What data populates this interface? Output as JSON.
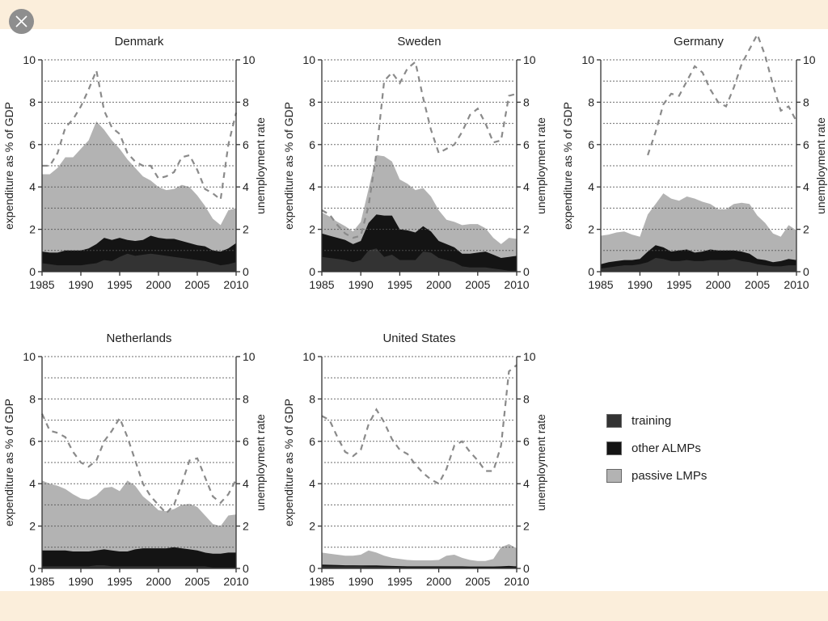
{
  "viewer": {
    "close_icon": "close-x-icon"
  },
  "legend": [
    {
      "key": "training",
      "label": "training",
      "color": "#333333"
    },
    {
      "key": "other",
      "label": "other ALMPs",
      "color": "#141414"
    },
    {
      "key": "passive",
      "label": "passive LMPs",
      "color": "#b3b3b3"
    }
  ],
  "colors": {
    "training": "#333333",
    "other": "#141414",
    "passive": "#b3b3b3",
    "unemployment_line": "#8a8a8a",
    "gridline": "#555555",
    "axis": "#333333",
    "page_background": "#fbeedb"
  },
  "chart_data": [
    {
      "type": "area",
      "title": "Denmark",
      "ylabel": "expenditure as % of GDP",
      "y2label": "unemployment rate",
      "xlim": [
        1985,
        2010
      ],
      "ylim": [
        0,
        10
      ],
      "y2lim": [
        0,
        10
      ],
      "xticks": [
        "1985",
        "1990",
        "1995",
        "2000",
        "2005",
        "2010"
      ],
      "yticks": [
        "0",
        "2",
        "4",
        "6",
        "8",
        "10"
      ],
      "grid": true,
      "x": [
        1985,
        1986,
        1987,
        1988,
        1989,
        1990,
        1991,
        1992,
        1993,
        1994,
        1995,
        1996,
        1997,
        1998,
        1999,
        2000,
        2001,
        2002,
        2003,
        2004,
        2005,
        2006,
        2007,
        2008,
        2009,
        2010
      ],
      "series": [
        {
          "name": "training",
          "stack_top": [
            0.4,
            0.35,
            0.3,
            0.3,
            0.3,
            0.3,
            0.35,
            0.4,
            0.55,
            0.5,
            0.7,
            0.85,
            0.75,
            0.8,
            0.85,
            0.8,
            0.75,
            0.7,
            0.65,
            0.6,
            0.55,
            0.5,
            0.4,
            0.3,
            0.35,
            0.45
          ]
        },
        {
          "name": "other ALMPs",
          "stack_top": [
            0.95,
            0.9,
            0.9,
            1.0,
            1.0,
            1.0,
            1.1,
            1.3,
            1.6,
            1.5,
            1.6,
            1.5,
            1.45,
            1.5,
            1.7,
            1.6,
            1.55,
            1.55,
            1.45,
            1.35,
            1.25,
            1.2,
            1.0,
            0.95,
            1.1,
            1.35
          ]
        },
        {
          "name": "passive LMPs",
          "stack_top": [
            4.6,
            4.6,
            4.9,
            5.4,
            5.4,
            5.8,
            6.2,
            7.1,
            6.7,
            6.2,
            5.8,
            5.3,
            4.9,
            4.5,
            4.3,
            4.0,
            3.85,
            3.9,
            4.1,
            4.0,
            3.6,
            3.1,
            2.5,
            2.2,
            2.9,
            3.0
          ]
        },
        {
          "name": "unemployment rate",
          "axis": "right",
          "style": "dashed",
          "values": [
            5.0,
            5.0,
            5.6,
            6.8,
            7.2,
            7.8,
            8.6,
            9.5,
            7.6,
            6.8,
            6.5,
            5.6,
            5.2,
            5.0,
            5.0,
            4.4,
            4.5,
            4.7,
            5.4,
            5.5,
            4.8,
            3.9,
            3.7,
            3.4,
            6.0,
            7.5
          ]
        }
      ]
    },
    {
      "type": "area",
      "title": "Sweden",
      "ylabel": "expenditure as % of GDP",
      "y2label": "unemployment rate",
      "xlim": [
        1985,
        2010
      ],
      "ylim": [
        0,
        10
      ],
      "y2lim": [
        0,
        10
      ],
      "xticks": [
        "1985",
        "1990",
        "1995",
        "2000",
        "2005",
        "2010"
      ],
      "yticks": [
        "0",
        "2",
        "4",
        "6",
        "8",
        "10"
      ],
      "grid": true,
      "x": [
        1985,
        1986,
        1987,
        1988,
        1989,
        1990,
        1991,
        1992,
        1993,
        1994,
        1995,
        1996,
        1997,
        1998,
        1999,
        2000,
        2001,
        2002,
        2003,
        2004,
        2005,
        2006,
        2007,
        2008,
        2009,
        2010
      ],
      "series": [
        {
          "name": "training",
          "stack_top": [
            0.7,
            0.65,
            0.6,
            0.55,
            0.45,
            0.55,
            1.0,
            1.1,
            0.7,
            0.8,
            0.55,
            0.55,
            0.55,
            0.95,
            0.9,
            0.65,
            0.55,
            0.45,
            0.25,
            0.2,
            0.2,
            0.2,
            0.15,
            0.1,
            0.05,
            0.05
          ]
        },
        {
          "name": "other ALMPs",
          "stack_top": [
            1.8,
            1.7,
            1.6,
            1.5,
            1.3,
            1.45,
            2.3,
            2.7,
            2.65,
            2.65,
            2.0,
            1.95,
            1.85,
            2.15,
            1.9,
            1.45,
            1.3,
            1.15,
            0.85,
            0.85,
            0.9,
            0.95,
            0.8,
            0.65,
            0.7,
            0.75
          ]
        },
        {
          "name": "passive LMPs",
          "stack_top": [
            2.8,
            2.6,
            2.35,
            2.15,
            1.9,
            2.35,
            3.9,
            5.5,
            5.45,
            5.2,
            4.35,
            4.15,
            3.85,
            3.95,
            3.55,
            2.9,
            2.45,
            2.35,
            2.2,
            2.25,
            2.25,
            2.05,
            1.6,
            1.3,
            1.6,
            1.55
          ]
        },
        {
          "name": "unemployment rate",
          "axis": "right",
          "style": "dashed",
          "values": [
            2.9,
            2.7,
            2.2,
            1.8,
            1.6,
            1.7,
            3.1,
            5.6,
            9.0,
            9.4,
            8.9,
            9.6,
            9.9,
            8.2,
            6.7,
            5.6,
            5.8,
            6.0,
            6.6,
            7.4,
            7.7,
            7.0,
            6.1,
            6.2,
            8.3,
            8.4
          ]
        }
      ]
    },
    {
      "type": "area",
      "title": "Germany",
      "ylabel": "expenditure as % of GDP",
      "y2label": "unemployment rate",
      "xlim": [
        1985,
        2010
      ],
      "ylim": [
        0,
        10
      ],
      "y2lim": [
        0,
        10
      ],
      "xticks": [
        "1985",
        "1990",
        "1995",
        "2000",
        "2005",
        "2010"
      ],
      "yticks": [
        "0",
        "2",
        "4",
        "6",
        "8",
        "10"
      ],
      "grid": true,
      "x": [
        1985,
        1986,
        1987,
        1988,
        1989,
        1990,
        1991,
        1992,
        1993,
        1994,
        1995,
        1996,
        1997,
        1998,
        1999,
        2000,
        2001,
        2002,
        2003,
        2004,
        2005,
        2006,
        2007,
        2008,
        2009,
        2010
      ],
      "series": [
        {
          "name": "training",
          "stack_top": [
            0.15,
            0.2,
            0.25,
            0.3,
            0.3,
            0.35,
            0.45,
            0.65,
            0.6,
            0.5,
            0.5,
            0.55,
            0.5,
            0.5,
            0.55,
            0.55,
            0.55,
            0.6,
            0.5,
            0.45,
            0.35,
            0.3,
            0.25,
            0.25,
            0.3,
            0.3
          ]
        },
        {
          "name": "other ALMPs",
          "stack_top": [
            0.35,
            0.45,
            0.5,
            0.55,
            0.55,
            0.6,
            0.95,
            1.25,
            1.15,
            0.95,
            1.0,
            1.05,
            0.9,
            0.95,
            1.05,
            1.0,
            1.0,
            1.0,
            0.95,
            0.85,
            0.6,
            0.55,
            0.45,
            0.5,
            0.6,
            0.55
          ]
        },
        {
          "name": "passive LMPs",
          "stack_top": [
            1.7,
            1.75,
            1.85,
            1.9,
            1.75,
            1.65,
            2.7,
            3.2,
            3.7,
            3.45,
            3.35,
            3.55,
            3.45,
            3.3,
            3.2,
            2.95,
            2.95,
            3.2,
            3.25,
            3.2,
            2.65,
            2.3,
            1.8,
            1.65,
            2.2,
            1.95
          ]
        },
        {
          "name": "unemployment rate",
          "axis": "right",
          "style": "dashed",
          "values": [
            null,
            null,
            null,
            null,
            null,
            null,
            5.5,
            6.6,
            7.9,
            8.4,
            8.3,
            9.0,
            9.7,
            9.4,
            8.6,
            8.0,
            7.8,
            8.7,
            9.8,
            10.5,
            11.2,
            10.2,
            8.8,
            7.6,
            7.8,
            7.1
          ]
        }
      ]
    },
    {
      "type": "area",
      "title": "Netherlands",
      "ylabel": "expenditure as % of GDP",
      "y2label": "unemployment rate",
      "xlim": [
        1985,
        2010
      ],
      "ylim": [
        0,
        10
      ],
      "y2lim": [
        0,
        10
      ],
      "xticks": [
        "1985",
        "1990",
        "1995",
        "2000",
        "2005",
        "2010"
      ],
      "yticks": [
        "0",
        "2",
        "4",
        "6",
        "8",
        "10"
      ],
      "grid": true,
      "x": [
        1985,
        1986,
        1987,
        1988,
        1989,
        1990,
        1991,
        1992,
        1993,
        1994,
        1995,
        1996,
        1997,
        1998,
        1999,
        2000,
        2001,
        2002,
        2003,
        2004,
        2005,
        2006,
        2007,
        2008,
        2009,
        2010
      ],
      "series": [
        {
          "name": "training",
          "stack_top": [
            0.1,
            0.1,
            0.1,
            0.1,
            0.1,
            0.1,
            0.1,
            0.15,
            0.15,
            0.1,
            0.1,
            0.1,
            0.1,
            0.1,
            0.1,
            0.1,
            0.1,
            0.1,
            0.1,
            0.1,
            0.1,
            0.1,
            0.05,
            0.05,
            0.05,
            0.05
          ]
        },
        {
          "name": "other ALMPs",
          "stack_top": [
            0.85,
            0.85,
            0.85,
            0.85,
            0.8,
            0.8,
            0.8,
            0.85,
            0.9,
            0.85,
            0.8,
            0.8,
            0.9,
            0.95,
            0.95,
            0.95,
            0.95,
            1.0,
            0.95,
            0.9,
            0.85,
            0.75,
            0.7,
            0.7,
            0.75,
            0.75
          ]
        },
        {
          "name": "passive LMPs",
          "stack_top": [
            4.15,
            4.0,
            3.9,
            3.75,
            3.5,
            3.3,
            3.25,
            3.45,
            3.8,
            3.85,
            3.65,
            4.15,
            3.9,
            3.4,
            3.1,
            2.75,
            2.7,
            2.8,
            3.0,
            3.05,
            2.9,
            2.5,
            2.1,
            2.0,
            2.5,
            2.55
          ]
        },
        {
          "name": "unemployment rate",
          "axis": "right",
          "style": "dashed",
          "values": [
            7.3,
            6.5,
            6.4,
            6.2,
            5.5,
            5.0,
            4.8,
            5.1,
            6.0,
            6.5,
            7.1,
            6.2,
            5.1,
            4.0,
            3.4,
            3.0,
            2.6,
            3.0,
            4.0,
            5.1,
            5.2,
            4.3,
            3.4,
            3.1,
            3.5,
            4.2
          ]
        }
      ]
    },
    {
      "type": "area",
      "title": "United States",
      "ylabel": "expenditure as % of GDP",
      "y2label": "unemployment rate",
      "xlim": [
        1985,
        2010
      ],
      "ylim": [
        0,
        10
      ],
      "y2lim": [
        0,
        10
      ],
      "xticks": [
        "1985",
        "1990",
        "1995",
        "2000",
        "2005",
        "2010"
      ],
      "yticks": [
        "0",
        "2",
        "4",
        "6",
        "8",
        "10"
      ],
      "grid": true,
      "x": [
        1985,
        1986,
        1987,
        1988,
        1989,
        1990,
        1991,
        1992,
        1993,
        1994,
        1995,
        1996,
        1997,
        1998,
        1999,
        2000,
        2001,
        2002,
        2003,
        2004,
        2005,
        2006,
        2007,
        2008,
        2009,
        2010
      ],
      "series": [
        {
          "name": "training",
          "stack_top": [
            0.1,
            0.1,
            0.1,
            0.1,
            0.1,
            0.1,
            0.08,
            0.08,
            0.07,
            0.07,
            0.06,
            0.05,
            0.05,
            0.05,
            0.05,
            0.05,
            0.05,
            0.05,
            0.05,
            0.04,
            0.04,
            0.04,
            0.04,
            0.04,
            0.05,
            0.05
          ]
        },
        {
          "name": "other ALMPs",
          "stack_top": [
            0.18,
            0.17,
            0.16,
            0.15,
            0.15,
            0.14,
            0.14,
            0.14,
            0.13,
            0.12,
            0.11,
            0.1,
            0.1,
            0.1,
            0.1,
            0.1,
            0.1,
            0.1,
            0.1,
            0.09,
            0.09,
            0.09,
            0.09,
            0.1,
            0.12,
            0.1
          ]
        },
        {
          "name": "passive LMPs",
          "stack_top": [
            0.75,
            0.7,
            0.65,
            0.6,
            0.6,
            0.65,
            0.85,
            0.75,
            0.6,
            0.5,
            0.45,
            0.4,
            0.38,
            0.38,
            0.38,
            0.4,
            0.6,
            0.65,
            0.5,
            0.4,
            0.35,
            0.35,
            0.45,
            1.0,
            1.15,
            0.95
          ]
        },
        {
          "name": "unemployment rate",
          "axis": "right",
          "style": "dashed",
          "values": [
            7.2,
            7.0,
            6.2,
            5.5,
            5.3,
            5.6,
            6.8,
            7.5,
            6.9,
            6.1,
            5.6,
            5.4,
            4.9,
            4.5,
            4.2,
            4.0,
            4.7,
            5.8,
            6.0,
            5.5,
            5.1,
            4.6,
            4.6,
            5.8,
            9.3,
            9.6
          ]
        }
      ]
    }
  ]
}
